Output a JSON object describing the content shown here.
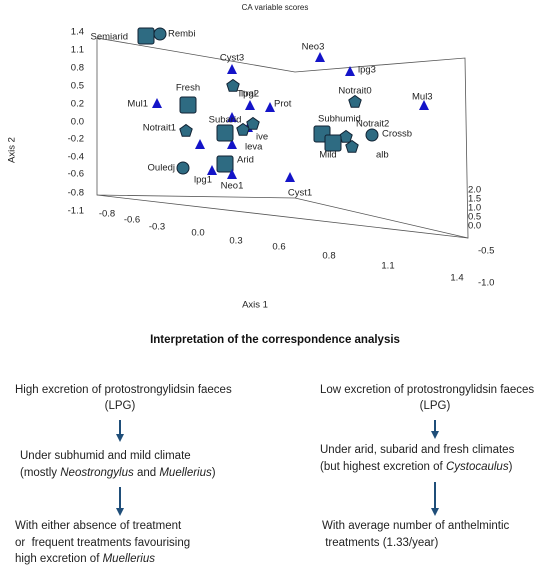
{
  "figure": {
    "title": "CA variable scores",
    "y_axis_label": "Axis 2",
    "x_axis_label": "Axis 1",
    "y_ticks": [
      "1.4",
      "1.1",
      "0.8",
      "0.5",
      "0.2",
      "0.0",
      "-0.2",
      "-0.4",
      "-0.6",
      "-0.8",
      "-1.1"
    ],
    "x_ticks": [
      "-0.8",
      "-0.6",
      "-0.3",
      "0.0",
      "0.3",
      "0.6",
      "0.8",
      "1.1",
      "1.4"
    ],
    "z_ticks": [
      "2.0",
      "1.5",
      "1.0",
      "0.5",
      "0.0",
      "-0.5",
      "-1.0"
    ],
    "points": [
      {
        "label": "Semiarid",
        "shape": "square"
      },
      {
        "label": "Rembi",
        "shape": "circle"
      },
      {
        "label": "Cyst3",
        "shape": "triangle"
      },
      {
        "label": "Neo3",
        "shape": "triangle"
      },
      {
        "label": "lpg3",
        "shape": "triangle"
      },
      {
        "label": "Ttrai",
        "shape": "pentagon"
      },
      {
        "label": "Fresh",
        "shape": "square"
      },
      {
        "label": "Mul1",
        "shape": "triangle"
      },
      {
        "label": "Notrait0",
        "shape": "pentagon"
      },
      {
        "label": "Mul3",
        "shape": "triangle"
      },
      {
        "label": "lpg2",
        "shape": "triangle"
      },
      {
        "label": "Prot",
        "shape": "triangle"
      },
      {
        "label": "Subarid",
        "shape": "square"
      },
      {
        "label": "Notrait1",
        "shape": "pentagon"
      },
      {
        "label": "ive",
        "shape": "pentagon"
      },
      {
        "label": "leva",
        "shape": "pentagon"
      },
      {
        "label": "Subhumid",
        "shape": "square"
      },
      {
        "label": "Notrait2",
        "shape": "pentagon"
      },
      {
        "label": "Crossb",
        "shape": "circle"
      },
      {
        "label": "Mild",
        "shape": "square"
      },
      {
        "label": "alb",
        "shape": "pentagon"
      },
      {
        "label": "Arid",
        "shape": "square"
      },
      {
        "label": "Ouledj",
        "shape": "circle"
      },
      {
        "label": "lpg1",
        "shape": "triangle"
      },
      {
        "label": "Neo1",
        "shape": "triangle"
      },
      {
        "label": "Cyst1",
        "shape": "triangle"
      }
    ]
  },
  "interpretation": {
    "title": "Interpretation of the correspondence analysis",
    "left": [
      [
        {
          "text": "High excretion of protostrongylidsin faeces"
        }
      ],
      [
        {
          "text": "(LPG)"
        }
      ],
      [
        {
          "text": "Under subhumid and mild climate"
        }
      ],
      [
        {
          "text": "(mostly "
        },
        {
          "text": "Neostrongylus",
          "italic": true
        },
        {
          "text": " and "
        },
        {
          "text": "Muellerius",
          "italic": true
        },
        {
          "text": ")"
        }
      ],
      [
        {
          "text": "With either absence of treatment"
        }
      ],
      [
        {
          "text": "or  frequent treatments favourising"
        }
      ],
      [
        {
          "text": "high excretion of "
        },
        {
          "text": "Muellerius",
          "italic": true
        }
      ]
    ],
    "right": [
      [
        {
          "text": "Low excretion of protostrongylidsin faeces"
        }
      ],
      [
        {
          "text": "(LPG)"
        }
      ],
      [
        {
          "text": "Under arid, subarid and fresh climates"
        }
      ],
      [
        {
          "text": "(but highest excretion of "
        },
        {
          "text": "Cystocaulus",
          "italic": true
        },
        {
          "text": ")"
        }
      ],
      [
        {
          "text": "With average number of anthelmintic"
        }
      ],
      [
        {
          "text": " treatments (1.33/year)"
        }
      ]
    ]
  }
}
